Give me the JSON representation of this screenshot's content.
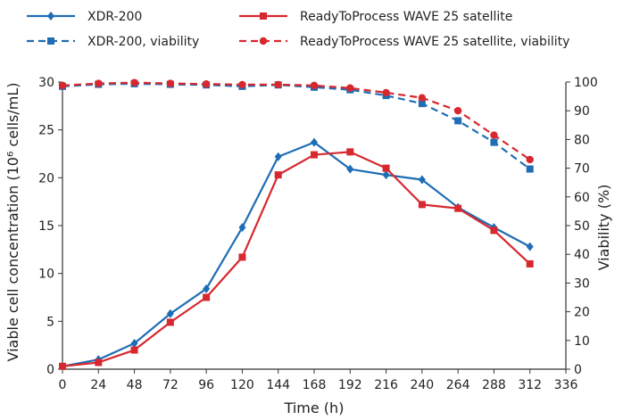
{
  "chart_data": {
    "type": "line",
    "title": "",
    "xlabel": "Time (h)",
    "ylabel": "Viable cell concentration (10⁶ cells/mL)",
    "y2label": "Viability (%)",
    "xlim": [
      0,
      336
    ],
    "ylim": [
      0,
      30
    ],
    "y2lim": [
      0,
      100
    ],
    "x_ticks": [
      0,
      24,
      48,
      72,
      96,
      120,
      144,
      168,
      192,
      216,
      240,
      264,
      288,
      312,
      336
    ],
    "y_ticks": [
      0,
      5,
      10,
      15,
      20,
      25,
      30
    ],
    "y2_ticks": [
      0,
      10,
      20,
      30,
      40,
      50,
      60,
      70,
      80,
      90,
      100
    ],
    "grid": false,
    "legend_position": "top",
    "series": [
      {
        "name": "XDR-200",
        "axis": "left",
        "color": "#1f6db5",
        "style": "solid",
        "marker": "diamond",
        "x": [
          0,
          24,
          48,
          72,
          96,
          120,
          144,
          168,
          192,
          216,
          240,
          264,
          288,
          312
        ],
        "values": [
          0.3,
          1.0,
          2.7,
          5.8,
          8.4,
          14.8,
          22.2,
          23.7,
          20.9,
          20.3,
          19.8,
          16.9,
          14.8,
          12.8
        ]
      },
      {
        "name": "ReadyToProcess WAVE 25 satellite",
        "axis": "left",
        "color": "#d7282f",
        "style": "solid",
        "marker": "square",
        "x": [
          0,
          24,
          48,
          72,
          96,
          120,
          144,
          168,
          192,
          216,
          240,
          264,
          288,
          312
        ],
        "values": [
          0.3,
          0.7,
          2.0,
          4.9,
          7.5,
          11.7,
          20.3,
          22.4,
          22.7,
          21.0,
          17.2,
          16.8,
          14.5,
          11.0
        ]
      },
      {
        "name": "XDR-200, viability",
        "axis": "right",
        "color": "#1f6db5",
        "style": "dashed",
        "marker": "square",
        "x": [
          0,
          24,
          48,
          72,
          96,
          120,
          144,
          168,
          192,
          216,
          240,
          264,
          288,
          312
        ],
        "values": [
          98.5,
          99.2,
          99.4,
          99.2,
          99.0,
          98.5,
          99.0,
          98.2,
          97.3,
          95.3,
          92.5,
          86.5,
          79.0,
          69.7
        ]
      },
      {
        "name": "ReadyToProcess WAVE 25 satellite, viability",
        "axis": "right",
        "color": "#d7282f",
        "style": "dashed",
        "marker": "circle",
        "x": [
          0,
          24,
          48,
          72,
          96,
          120,
          144,
          168,
          192,
          216,
          240,
          264,
          288,
          312
        ],
        "values": [
          98.8,
          99.5,
          99.8,
          99.5,
          99.3,
          99.1,
          99.1,
          98.8,
          97.9,
          96.3,
          94.5,
          90.0,
          81.5,
          73.0
        ]
      }
    ]
  }
}
